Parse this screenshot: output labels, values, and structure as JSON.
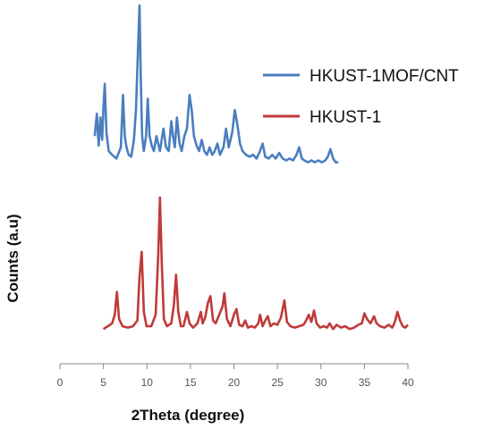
{
  "chart_data": {
    "type": "line",
    "xlabel": "2Theta (degree)",
    "ylabel": "Counts (a.u)",
    "xlim": [
      0,
      40
    ],
    "xticks": [
      "0",
      "5",
      "10",
      "15",
      "20",
      "25",
      "30",
      "35",
      "40"
    ],
    "grid": false,
    "legend": "top-right",
    "yaxis_shown": false,
    "series": [
      {
        "name": "HKUST-1MOF/CNT",
        "color": "#4a7ebf",
        "x": [
          4.0,
          4.25,
          4.45,
          4.65,
          4.85,
          5.0,
          5.15,
          5.35,
          5.6,
          6.0,
          6.5,
          7.0,
          7.25,
          7.45,
          7.65,
          7.9,
          8.2,
          8.5,
          8.75,
          9.0,
          9.15,
          9.3,
          9.45,
          9.65,
          9.9,
          10.1,
          10.3,
          10.55,
          10.8,
          11.1,
          11.5,
          11.9,
          12.2,
          12.5,
          12.8,
          13.0,
          13.2,
          13.45,
          13.75,
          14.0,
          14.3,
          14.6,
          14.9,
          15.15,
          15.4,
          15.7,
          16.0,
          16.3,
          16.6,
          16.9,
          17.2,
          17.5,
          17.8,
          18.1,
          18.4,
          18.8,
          19.1,
          19.4,
          19.8,
          20.1,
          20.4,
          20.7,
          21.0,
          21.4,
          21.8,
          22.2,
          22.6,
          23.0,
          23.3,
          23.6,
          24.0,
          24.4,
          24.8,
          25.2,
          25.6,
          26.0,
          26.4,
          26.8,
          27.2,
          27.5,
          27.8,
          28.1,
          28.5,
          28.9,
          29.3,
          29.7,
          30.1,
          30.5,
          30.8,
          31.1,
          31.4,
          31.7,
          32.0
        ],
        "y": [
          0.3,
          0.42,
          0.25,
          0.4,
          0.28,
          0.45,
          0.58,
          0.32,
          0.22,
          0.2,
          0.18,
          0.24,
          0.52,
          0.3,
          0.24,
          0.2,
          0.19,
          0.28,
          0.45,
          0.8,
          1.0,
          0.6,
          0.3,
          0.22,
          0.3,
          0.5,
          0.3,
          0.25,
          0.22,
          0.3,
          0.22,
          0.34,
          0.24,
          0.22,
          0.38,
          0.3,
          0.24,
          0.4,
          0.26,
          0.22,
          0.3,
          0.34,
          0.52,
          0.44,
          0.3,
          0.25,
          0.22,
          0.28,
          0.22,
          0.2,
          0.24,
          0.2,
          0.22,
          0.26,
          0.2,
          0.24,
          0.34,
          0.24,
          0.32,
          0.44,
          0.36,
          0.26,
          0.22,
          0.2,
          0.19,
          0.2,
          0.18,
          0.22,
          0.26,
          0.19,
          0.18,
          0.2,
          0.18,
          0.21,
          0.18,
          0.17,
          0.18,
          0.17,
          0.2,
          0.24,
          0.18,
          0.17,
          0.16,
          0.17,
          0.16,
          0.17,
          0.16,
          0.17,
          0.19,
          0.23,
          0.18,
          0.16,
          0.16
        ]
      },
      {
        "name": "HKUST-1",
        "color": "#c03a39",
        "x": [
          5.0,
          5.5,
          6.0,
          6.3,
          6.55,
          6.8,
          7.2,
          7.8,
          8.4,
          8.9,
          9.15,
          9.4,
          9.65,
          9.95,
          10.5,
          11.0,
          11.3,
          11.5,
          11.7,
          11.95,
          12.3,
          12.8,
          13.1,
          13.35,
          13.6,
          13.9,
          14.2,
          14.6,
          14.9,
          15.3,
          15.8,
          16.2,
          16.4,
          16.7,
          17.0,
          17.3,
          17.6,
          17.9,
          18.3,
          18.7,
          18.9,
          19.2,
          19.6,
          20.0,
          20.3,
          20.6,
          21.0,
          21.3,
          21.6,
          22.0,
          22.4,
          22.8,
          23.0,
          23.3,
          23.6,
          23.9,
          24.2,
          24.6,
          25.0,
          25.4,
          25.8,
          26.1,
          26.5,
          27.0,
          27.5,
          28.0,
          28.3,
          28.6,
          28.9,
          29.2,
          29.5,
          29.9,
          30.3,
          30.7,
          31.0,
          31.4,
          31.8,
          32.3,
          32.8,
          33.3,
          33.8,
          34.3,
          34.7,
          35.0,
          35.3,
          35.7,
          36.1,
          36.4,
          36.8,
          37.3,
          37.8,
          38.2,
          38.5,
          38.8,
          39.1,
          39.4,
          39.7,
          40.0
        ],
        "y": [
          0.08,
          0.1,
          0.12,
          0.18,
          0.34,
          0.15,
          0.1,
          0.09,
          0.1,
          0.14,
          0.45,
          0.62,
          0.2,
          0.1,
          0.1,
          0.18,
          0.6,
          1.0,
          0.55,
          0.15,
          0.1,
          0.12,
          0.25,
          0.46,
          0.2,
          0.1,
          0.1,
          0.2,
          0.12,
          0.09,
          0.12,
          0.2,
          0.12,
          0.16,
          0.26,
          0.31,
          0.14,
          0.12,
          0.18,
          0.24,
          0.33,
          0.15,
          0.1,
          0.18,
          0.22,
          0.11,
          0.1,
          0.14,
          0.09,
          0.1,
          0.09,
          0.12,
          0.18,
          0.1,
          0.14,
          0.17,
          0.1,
          0.12,
          0.11,
          0.16,
          0.28,
          0.13,
          0.1,
          0.09,
          0.1,
          0.11,
          0.14,
          0.18,
          0.13,
          0.21,
          0.12,
          0.09,
          0.1,
          0.09,
          0.12,
          0.08,
          0.11,
          0.09,
          0.1,
          0.08,
          0.09,
          0.11,
          0.12,
          0.19,
          0.15,
          0.12,
          0.17,
          0.12,
          0.1,
          0.09,
          0.11,
          0.09,
          0.13,
          0.2,
          0.14,
          0.1,
          0.09,
          0.11
        ]
      }
    ]
  }
}
